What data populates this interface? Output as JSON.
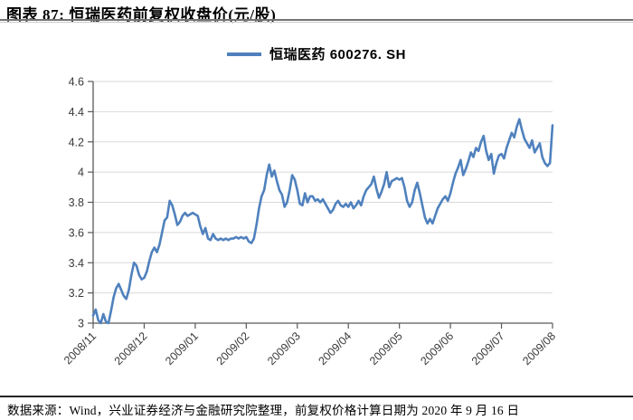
{
  "header": {
    "title": "图表 87: 恒瑞医药前复权收盘价(元/股)"
  },
  "legend": {
    "label": "恒瑞医药  600276. SH"
  },
  "footer": {
    "source": "数据来源：Wind，兴业证券经济与金融研究院整理，前复权价格计算日期为 2020 年 9 月 16 日"
  },
  "colors": {
    "series": "#4F81BD",
    "grid": "#D9D9D9",
    "axis": "#595959",
    "tick_label": "#3A3A3A",
    "title_rule_dark": "#737373",
    "title_rule_light": "#C9C9C9",
    "footer_rule": "#262626"
  },
  "chart_data": {
    "type": "line",
    "title": "恒瑞医药前复权收盘价(元/股)",
    "xlabel": "",
    "ylabel": "",
    "ylim": [
      3.0,
      4.6
    ],
    "y_ticks": [
      3,
      3.2,
      3.4,
      3.6,
      3.8,
      4,
      4.2,
      4.4,
      4.6
    ],
    "y_tick_labels": [
      "3",
      "3.2",
      "3.4",
      "3.6",
      "3.8",
      "4",
      "4.2",
      "4.4",
      "4.6"
    ],
    "x_tick_labels": [
      "2008/11",
      "2008/12",
      "2009/01",
      "2009/02",
      "2009/03",
      "2009/04",
      "2009/05",
      "2009/06",
      "2009/07",
      "2009/08"
    ],
    "grid": "horizontal",
    "legend_position": "top-center",
    "series": [
      {
        "name": "恒瑞医药 600276. SH",
        "color": "#4F81BD",
        "values": [
          3.05,
          3.09,
          3.02,
          3.0,
          3.06,
          3.01,
          3.0,
          3.08,
          3.17,
          3.23,
          3.26,
          3.22,
          3.18,
          3.16,
          3.22,
          3.32,
          3.4,
          3.38,
          3.32,
          3.29,
          3.3,
          3.34,
          3.41,
          3.47,
          3.5,
          3.47,
          3.52,
          3.6,
          3.68,
          3.7,
          3.81,
          3.78,
          3.72,
          3.65,
          3.67,
          3.71,
          3.73,
          3.71,
          3.72,
          3.73,
          3.72,
          3.71,
          3.64,
          3.59,
          3.63,
          3.56,
          3.55,
          3.59,
          3.56,
          3.55,
          3.56,
          3.55,
          3.56,
          3.55,
          3.56,
          3.56,
          3.57,
          3.56,
          3.57,
          3.56,
          3.57,
          3.54,
          3.53,
          3.56,
          3.65,
          3.76,
          3.84,
          3.88,
          3.98,
          4.05,
          3.97,
          4.01,
          3.94,
          3.88,
          3.85,
          3.77,
          3.8,
          3.88,
          3.98,
          3.95,
          3.88,
          3.79,
          3.78,
          3.86,
          3.8,
          3.84,
          3.84,
          3.81,
          3.82,
          3.8,
          3.82,
          3.79,
          3.76,
          3.73,
          3.75,
          3.79,
          3.81,
          3.78,
          3.77,
          3.79,
          3.77,
          3.8,
          3.76,
          3.78,
          3.81,
          3.78,
          3.84,
          3.88,
          3.9,
          3.92,
          3.97,
          3.89,
          3.83,
          3.87,
          3.92,
          4.0,
          3.9,
          3.94,
          3.95,
          3.96,
          3.95,
          3.96,
          3.9,
          3.81,
          3.77,
          3.8,
          3.88,
          3.93,
          3.86,
          3.78,
          3.7,
          3.66,
          3.69,
          3.66,
          3.71,
          3.76,
          3.79,
          3.82,
          3.84,
          3.81,
          3.86,
          3.93,
          3.99,
          4.03,
          4.08,
          3.98,
          4.02,
          4.07,
          4.13,
          4.1,
          4.16,
          4.14,
          4.2,
          4.24,
          4.14,
          4.08,
          4.12,
          3.99,
          4.06,
          4.11,
          4.12,
          4.09,
          4.16,
          4.21,
          4.26,
          4.23,
          4.3,
          4.35,
          4.28,
          4.22,
          4.19,
          4.16,
          4.21,
          4.13,
          4.16,
          4.19,
          4.1,
          4.06,
          4.04,
          4.06,
          4.31
        ]
      }
    ]
  }
}
